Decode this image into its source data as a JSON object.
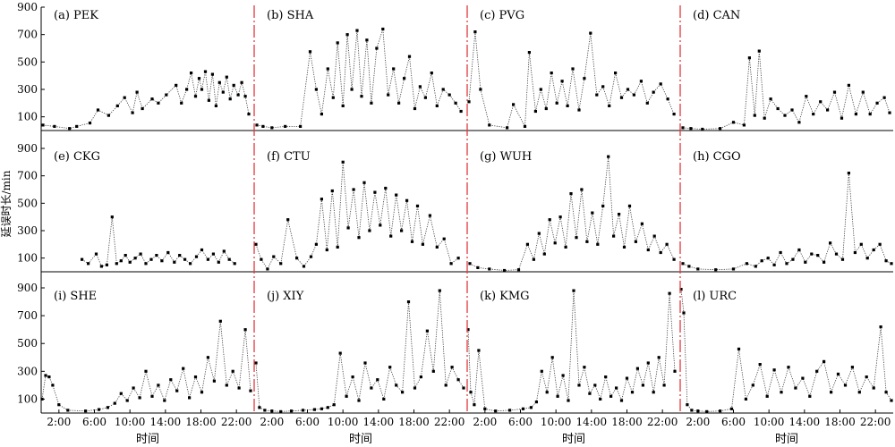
{
  "figure": {
    "ylabel": "延误时长/min",
    "xlabel": "时间"
  },
  "chart_data": {
    "type": "scatter",
    "style": "dotted line with small black square markers",
    "layout": "3 rows x 4 panels, shared y axis per row, shared time axis per column",
    "ylim": [
      0,
      900
    ],
    "yticks": [
      100,
      300,
      500,
      700,
      900
    ],
    "xlim": [
      "0:00",
      "24:00"
    ],
    "xticks": [
      "2:00",
      "6:00",
      "10:00",
      "14:00",
      "18:00",
      "22:00"
    ],
    "separator_color": "#e0393b",
    "panels": [
      {
        "label": "(a) PEK",
        "series": [
          {
            "x": [
              0.2,
              1.5,
              3.2,
              4.0,
              5.5,
              6.4,
              7.6,
              8.6,
              9.4,
              10.3,
              10.8,
              11.4,
              12.5,
              13.2,
              14.1,
              15.2,
              15.8,
              16.4,
              16.9,
              17.4,
              17.8,
              18.1,
              18.5,
              18.9,
              19.3,
              19.7,
              20.1,
              20.5,
              20.9,
              21.3,
              21.7,
              22.2,
              22.6,
              23.0,
              23.4
            ],
            "y": [
              40,
              30,
              15,
              30,
              55,
              150,
              110,
              180,
              240,
              130,
              280,
              160,
              230,
              200,
              260,
              330,
              200,
              300,
              420,
              250,
              380,
              300,
              430,
              220,
              410,
              180,
              350,
              280,
              390,
              230,
              330,
              260,
              350,
              250,
              120
            ]
          }
        ]
      },
      {
        "label": "(b) SHA",
        "series": [
          {
            "x": [
              0.3,
              1.0,
              2.0,
              3.5,
              5.2,
              6.3,
              7.0,
              7.6,
              8.3,
              8.9,
              9.4,
              10.0,
              10.5,
              11.0,
              11.6,
              12.1,
              12.7,
              13.2,
              13.8,
              14.5,
              15.1,
              15.7,
              16.3,
              16.9,
              17.5,
              18.1,
              18.7,
              19.3,
              20.0,
              20.6,
              21.3,
              22.0,
              22.7,
              23.3
            ],
            "y": [
              40,
              30,
              20,
              30,
              30,
              575,
              300,
              120,
              450,
              240,
              640,
              180,
              700,
              300,
              730,
              250,
              660,
              200,
              600,
              740,
              260,
              450,
              200,
              380,
              540,
              160,
              320,
              240,
              420,
              180,
              300,
              260,
              200,
              140
            ]
          }
        ]
      },
      {
        "label": "(c) PVG",
        "series": [
          {
            "x": [
              0.2,
              0.9,
              1.5,
              2.5,
              4.5,
              5.2,
              6.5,
              7.0,
              7.7,
              8.3,
              8.9,
              9.5,
              10.1,
              10.7,
              11.3,
              11.9,
              12.6,
              13.2,
              13.9,
              14.6,
              15.3,
              16.0,
              16.7,
              17.4,
              18.1,
              18.8,
              19.6,
              20.3,
              21.0,
              21.8,
              22.6,
              23.3
            ],
            "y": [
              210,
              720,
              300,
              40,
              20,
              190,
              30,
              570,
              140,
              300,
              160,
              420,
              200,
              360,
              180,
              450,
              150,
              380,
              710,
              260,
              320,
              180,
              420,
              240,
              300,
              260,
              360,
              200,
              280,
              340,
              230,
              120
            ]
          }
        ]
      },
      {
        "label": "(d) CAN",
        "series": [
          {
            "x": [
              0.3,
              1.2,
              2.5,
              4.5,
              6.0,
              7.2,
              7.8,
              8.4,
              8.9,
              9.5,
              10.2,
              11.0,
              11.8,
              12.6,
              13.4,
              14.2,
              15.0,
              15.8,
              16.6,
              17.4,
              18.2,
              19.0,
              19.8,
              20.6,
              21.4,
              22.2,
              23.0,
              23.6
            ],
            "y": [
              20,
              15,
              10,
              15,
              60,
              40,
              530,
              110,
              580,
              90,
              230,
              160,
              110,
              150,
              60,
              250,
              120,
              210,
              150,
              280,
              90,
              330,
              120,
              280,
              120,
              200,
              240,
              130
            ]
          }
        ]
      },
      {
        "label": "(e) CKG",
        "series": [
          {
            "x": [
              4.6,
              5.3,
              6.2,
              6.8,
              7.4,
              8.0,
              8.5,
              9.0,
              9.5,
              10.0,
              10.6,
              11.2,
              11.8,
              12.4,
              13.0,
              13.6,
              14.3,
              15.0,
              15.6,
              16.2,
              16.8,
              17.5,
              18.1,
              18.8,
              19.4,
              20.0,
              20.6,
              21.2,
              21.8
            ],
            "y": [
              90,
              60,
              130,
              40,
              50,
              400,
              60,
              80,
              120,
              70,
              100,
              130,
              60,
              90,
              120,
              80,
              140,
              70,
              120,
              90,
              60,
              110,
              160,
              90,
              130,
              70,
              150,
              90,
              60
            ]
          }
        ]
      },
      {
        "label": "(f) CTU",
        "series": [
          {
            "x": [
              0.2,
              0.8,
              1.5,
              2.2,
              3.0,
              3.8,
              4.8,
              5.6,
              6.4,
              7.0,
              7.6,
              8.2,
              8.8,
              9.4,
              10.0,
              10.6,
              11.2,
              11.8,
              12.4,
              13.0,
              13.6,
              14.2,
              14.8,
              15.4,
              16.0,
              16.6,
              17.2,
              17.8,
              18.4,
              19.0,
              19.8,
              20.6,
              21.4,
              22.2,
              23.0
            ],
            "y": [
              200,
              90,
              20,
              110,
              60,
              380,
              100,
              40,
              110,
              200,
              530,
              160,
              590,
              180,
              800,
              320,
              600,
              250,
              650,
              300,
              580,
              340,
              610,
              260,
              560,
              300,
              520,
              220,
              480,
              200,
              410,
              180,
              240,
              60,
              100
            ]
          }
        ]
      },
      {
        "label": "(g) WUH",
        "series": [
          {
            "x": [
              0.3,
              1.2,
              2.5,
              4.2,
              5.8,
              6.8,
              7.5,
              8.1,
              8.7,
              9.3,
              9.9,
              10.5,
              11.1,
              11.7,
              12.3,
              12.9,
              13.5,
              14.1,
              14.7,
              15.3,
              15.9,
              16.5,
              17.1,
              17.7,
              18.3,
              19.0,
              19.7,
              20.4,
              21.1,
              21.8,
              22.5,
              23.3
            ],
            "y": [
              60,
              30,
              20,
              10,
              15,
              200,
              90,
              280,
              130,
              380,
              210,
              400,
              180,
              570,
              250,
              600,
              220,
              430,
              200,
              480,
              840,
              260,
              420,
              180,
              480,
              220,
              350,
              160,
              260,
              140,
              200,
              90
            ]
          }
        ]
      },
      {
        "label": "(h) CGO",
        "series": [
          {
            "x": [
              0.3,
              1.0,
              2.0,
              4.0,
              6.0,
              7.5,
              8.5,
              9.2,
              9.9,
              10.6,
              11.3,
              12.0,
              12.7,
              13.4,
              14.1,
              14.8,
              15.5,
              16.2,
              16.9,
              17.6,
              18.3,
              19.0,
              19.7,
              20.4,
              21.1,
              21.8,
              22.5,
              23.2,
              23.8
            ],
            "y": [
              60,
              40,
              20,
              15,
              20,
              60,
              40,
              80,
              100,
              50,
              140,
              60,
              90,
              160,
              70,
              130,
              120,
              70,
              210,
              130,
              90,
              720,
              140,
              200,
              100,
              160,
              200,
              80,
              60
            ]
          }
        ]
      },
      {
        "label": "(i) SHE",
        "series": [
          {
            "x": [
              0.1,
              0.5,
              0.9,
              1.3,
              2.0,
              3.0,
              5.0,
              6.5,
              7.5,
              8.3,
              9.0,
              9.7,
              10.4,
              11.1,
              11.8,
              12.5,
              13.2,
              13.9,
              14.6,
              15.3,
              16.0,
              16.7,
              17.4,
              18.1,
              18.8,
              19.5,
              20.2,
              20.9,
              21.6,
              22.3,
              23.0,
              23.6
            ],
            "y": [
              100,
              270,
              260,
              200,
              60,
              20,
              15,
              25,
              40,
              70,
              140,
              90,
              180,
              110,
              300,
              120,
              200,
              90,
              240,
              160,
              320,
              110,
              260,
              150,
              400,
              230,
              660,
              200,
              300,
              180,
              600,
              160
            ]
          }
        ]
      },
      {
        "label": "(j) XIY",
        "series": [
          {
            "x": [
              0.2,
              0.6,
              1.2,
              2.0,
              3.0,
              4.2,
              5.5,
              6.8,
              7.6,
              8.3,
              9.0,
              9.7,
              10.4,
              11.1,
              11.8,
              12.5,
              13.2,
              13.9,
              14.6,
              15.3,
              16.0,
              16.7,
              17.4,
              18.1,
              18.8,
              19.5,
              20.2,
              20.9,
              21.6,
              22.3,
              23.0,
              23.6
            ],
            "y": [
              360,
              40,
              20,
              15,
              10,
              15,
              20,
              25,
              30,
              40,
              60,
              430,
              120,
              260,
              90,
              360,
              180,
              240,
              100,
              330,
              200,
              150,
              800,
              180,
              260,
              590,
              300,
              880,
              200,
              330,
              240,
              180
            ]
          }
        ]
      },
      {
        "label": "(k) KMG",
        "series": [
          {
            "x": [
              0.1,
              0.4,
              0.8,
              1.3,
              2.0,
              3.2,
              4.8,
              6.3,
              7.2,
              7.8,
              8.4,
              9.0,
              9.6,
              10.2,
              10.8,
              11.4,
              12.0,
              12.6,
              13.2,
              13.8,
              14.4,
              15.0,
              15.6,
              16.2,
              16.8,
              17.4,
              18.0,
              18.6,
              19.2,
              19.8,
              20.4,
              21.0,
              21.6,
              22.2,
              22.8,
              23.4
            ],
            "y": [
              600,
              150,
              60,
              450,
              30,
              15,
              20,
              30,
              40,
              80,
              300,
              150,
              400,
              120,
              270,
              90,
              880,
              200,
              330,
              140,
              200,
              100,
              260,
              120,
              180,
              90,
              250,
              150,
              320,
              200,
              360,
              150,
              400,
              200,
              860,
              300
            ]
          }
        ]
      },
      {
        "label": "(l) URC",
        "series": [
          {
            "x": [
              0.1,
              0.4,
              0.8,
              1.3,
              2.0,
              3.0,
              4.5,
              5.8,
              6.6,
              7.4,
              8.2,
              9.0,
              9.8,
              10.6,
              11.4,
              12.2,
              13.0,
              13.8,
              14.6,
              15.4,
              16.2,
              17.0,
              17.8,
              18.6,
              19.4,
              20.2,
              21.0,
              21.8,
              22.6,
              23.2,
              23.8
            ],
            "y": [
              890,
              720,
              60,
              20,
              15,
              10,
              15,
              30,
              460,
              100,
              200,
              350,
              120,
              310,
              150,
              330,
              180,
              250,
              120,
              300,
              370,
              150,
              280,
              200,
              330,
              150,
              260,
              180,
              620,
              150,
              90
            ]
          }
        ]
      }
    ]
  }
}
